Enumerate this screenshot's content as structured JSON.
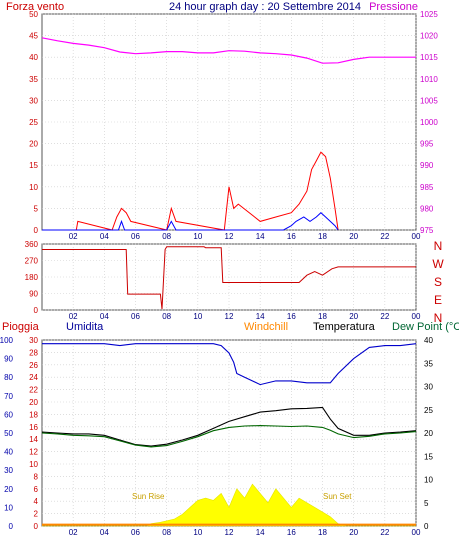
{
  "chart_data": [
    {
      "type": "line",
      "title": "24 hour graph day : 20 Settembre 2014",
      "y_left_label": "Forza vento",
      "y_right_label": "Pressione",
      "x_ticks": [
        "02",
        "04",
        "06",
        "08",
        "10",
        "12",
        "14",
        "16",
        "18",
        "20",
        "22",
        "00"
      ],
      "y_left_ticks": [
        "0",
        "5",
        "10",
        "15",
        "20",
        "25",
        "30",
        "35",
        "40",
        "45",
        "50"
      ],
      "y_right_ticks": [
        "975",
        "980",
        "985",
        "990",
        "995",
        "1000",
        "1005",
        "1010",
        "1015",
        "1020",
        "1025"
      ],
      "y_left_range": [
        0,
        50
      ],
      "y_right_range": [
        975,
        1025
      ],
      "series": [
        {
          "color": "#ff00ff",
          "axis": "right",
          "x": [
            0,
            1,
            2,
            3,
            4,
            5,
            6,
            7,
            8,
            9,
            10,
            11,
            12,
            13,
            14,
            15,
            16,
            17,
            18,
            19,
            20,
            21,
            22,
            23,
            24
          ],
          "y": [
            1019.5,
            1018.8,
            1018.2,
            1017.8,
            1017.2,
            1016.2,
            1015.8,
            1016,
            1016.3,
            1016.3,
            1016,
            1016,
            1016.5,
            1016.4,
            1016,
            1015.8,
            1015.5,
            1014.8,
            1013.6,
            1013.7,
            1014.5,
            1015,
            1015,
            1015,
            1015
          ]
        },
        {
          "color": "#ff0000",
          "axis": "left",
          "x": [
            0,
            2.2,
            2.3,
            4.5,
            4.8,
            5.1,
            5.4,
            5.7,
            8,
            8.3,
            8.6,
            11.7,
            12,
            12.3,
            12.6,
            14,
            15,
            16,
            16.5,
            17,
            17.3,
            17.6,
            17.9,
            18.2,
            18.5,
            18.8,
            19
          ],
          "y": [
            0,
            0,
            2,
            0,
            3,
            5,
            4,
            2,
            0,
            5,
            2,
            0,
            10,
            5,
            6,
            2,
            3,
            4,
            6,
            9,
            14,
            16,
            18,
            17,
            12,
            5,
            0
          ]
        },
        {
          "color": "#0000ff",
          "axis": "left",
          "x": [
            0,
            4.9,
            5.1,
            5.3,
            8,
            8.3,
            8.6,
            15.5,
            16,
            16.3,
            16.8,
            17.2,
            17.6,
            17.9,
            18.2,
            18.5,
            18.8,
            19
          ],
          "y": [
            0,
            0,
            2,
            0,
            0,
            2,
            0,
            0,
            1,
            2,
            3,
            2,
            3,
            4,
            3,
            2,
            1,
            0
          ]
        }
      ]
    },
    {
      "type": "line",
      "y_right_label": [
        "N",
        "W",
        "S",
        "E",
        "N"
      ],
      "x_ticks": [
        "02",
        "04",
        "06",
        "08",
        "10",
        "12",
        "14",
        "16",
        "18",
        "20",
        "22",
        "00"
      ],
      "y_left_ticks": [
        "0",
        "90",
        "180",
        "270",
        "360"
      ],
      "y_range": [
        0,
        360
      ],
      "series": [
        {
          "color": "#cc0000",
          "x": [
            0,
            5.4,
            5.5,
            7.6,
            7.7,
            7.9,
            8,
            10.4,
            10.5,
            11.5,
            11.6,
            16.5,
            17,
            17.5,
            18,
            18.6,
            19,
            20,
            22,
            24
          ],
          "y": [
            330,
            330,
            87,
            87,
            5,
            330,
            345,
            345,
            340,
            340,
            150,
            150,
            190,
            210,
            190,
            225,
            235,
            235,
            235,
            235
          ]
        }
      ]
    },
    {
      "type": "line",
      "labels": [
        "Pioggia",
        "Umidita",
        "Windchill",
        "Temperatura",
        "Dew Point (°C"
      ],
      "x_ticks": [
        "02",
        "04",
        "06",
        "08",
        "10",
        "12",
        "14",
        "16",
        "18",
        "20",
        "22",
        "00"
      ],
      "y_left_ticks": [
        "0",
        "10",
        "20",
        "30",
        "40",
        "50",
        "60",
        "70",
        "80",
        "90",
        "100"
      ],
      "y_mid_ticks": [
        "0",
        "2",
        "4",
        "6",
        "8",
        "10",
        "12",
        "14",
        "16",
        "18",
        "20",
        "22",
        "24",
        "26",
        "28",
        "30"
      ],
      "y_right_ticks": [
        "0",
        "5",
        "10",
        "15",
        "20",
        "25",
        "30",
        "35",
        "40"
      ],
      "annotations": [
        "Sun Rise",
        "Sun Set"
      ],
      "temp_range": [
        0,
        40
      ],
      "humidity_range": [
        0,
        100
      ],
      "series": [
        {
          "color": "#0000cc",
          "axis": "humidity",
          "x": [
            0,
            4,
            5,
            6,
            7,
            8,
            9,
            10,
            10.5,
            11,
            11.5,
            12,
            12.3,
            12.5,
            13,
            14,
            15,
            16,
            17,
            18,
            18.5,
            19,
            20,
            21,
            22,
            23,
            24
          ],
          "y": [
            98,
            98,
            97,
            98,
            98,
            98,
            98,
            98,
            98,
            98,
            97,
            93,
            88,
            82,
            80,
            76,
            78,
            78,
            77,
            77,
            77,
            82,
            90,
            96,
            97,
            97,
            98
          ]
        },
        {
          "color": "#000000",
          "axis": "temp",
          "x": [
            0,
            1,
            2,
            3,
            4,
            5,
            6,
            7,
            8,
            9,
            10,
            11,
            12,
            13,
            14,
            15,
            16,
            17,
            18,
            18.5,
            19,
            20,
            21,
            22,
            23,
            24
          ],
          "y": [
            20.2,
            20,
            19.8,
            19.8,
            19.5,
            18.5,
            17.5,
            17.2,
            17.6,
            18.5,
            19.5,
            21,
            22.5,
            23.5,
            24.5,
            24.8,
            25.2,
            25.3,
            25.5,
            23,
            21,
            19.5,
            19.5,
            20,
            20.2,
            20.5
          ]
        },
        {
          "color": "#006600",
          "axis": "temp",
          "x": [
            0,
            1,
            2,
            3,
            4,
            5,
            6,
            7,
            8,
            9,
            10,
            11,
            12,
            13,
            14,
            15,
            16,
            17,
            18,
            18.5,
            19,
            20,
            21,
            22,
            23,
            24
          ],
          "y": [
            20,
            19.8,
            19.5,
            19.4,
            19.2,
            18.3,
            17.4,
            17,
            17.3,
            18.2,
            19.2,
            20.5,
            21.2,
            21.5,
            21.6,
            21.5,
            21.4,
            21.5,
            21.2,
            20.6,
            19.8,
            19,
            19.3,
            19.8,
            20,
            20.3
          ]
        },
        {
          "color": "#ff8800",
          "axis": "temp",
          "x": [
            0,
            24
          ],
          "y": [
            0.3,
            0.3
          ]
        }
      ],
      "solar": {
        "color": "#ffff00",
        "x": [
          0,
          6.8,
          7,
          7.6,
          8.5,
          9,
          9.5,
          10,
          10.5,
          11,
          11.5,
          12,
          12.5,
          13,
          13.5,
          14,
          14.5,
          15,
          15.5,
          16,
          16.5,
          17,
          17.5,
          18,
          18.5,
          19,
          19.5,
          24
        ],
        "y": [
          0,
          0,
          0.5,
          0.8,
          1.5,
          2.5,
          4,
          5.5,
          6,
          5.5,
          7,
          4,
          8,
          6,
          9,
          7,
          5,
          8,
          6,
          4,
          6,
          5,
          4,
          3,
          2,
          0.5,
          0,
          0
        ]
      }
    }
  ]
}
